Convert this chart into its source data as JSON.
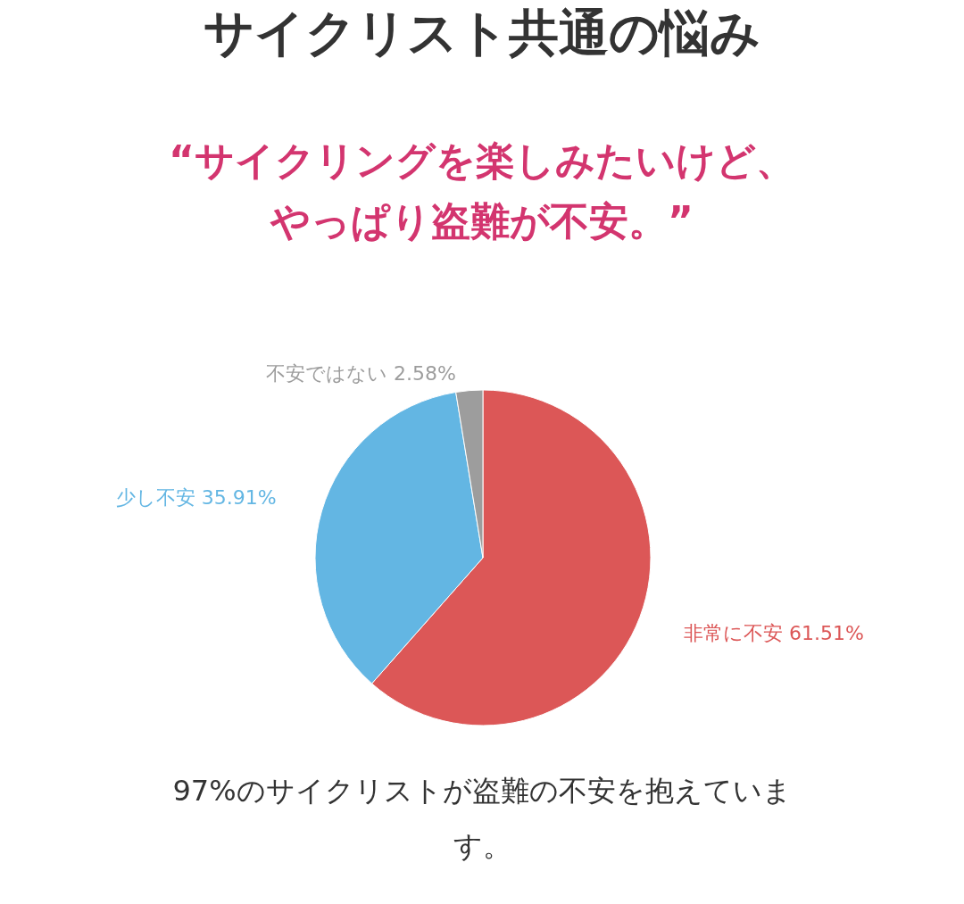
{
  "chart_data": {
    "type": "pie",
    "title": "サイクリスト共通の悩み",
    "subtitle": "“サイクリングを楽しみたいけど、やっぱり盗難が不安。”",
    "categories": [
      "非常に不安",
      "少し不安",
      "不安ではない"
    ],
    "values": [
      61.51,
      35.91,
      2.58
    ],
    "colors": [
      "#dc5757",
      "#63b6e3",
      "#9d9d9d"
    ],
    "value_labels": [
      "61.51%",
      "35.91%",
      "2.58%"
    ],
    "annotations": [
      "97%のサイクリストが盗難の不安を抱えています。"
    ]
  }
}
